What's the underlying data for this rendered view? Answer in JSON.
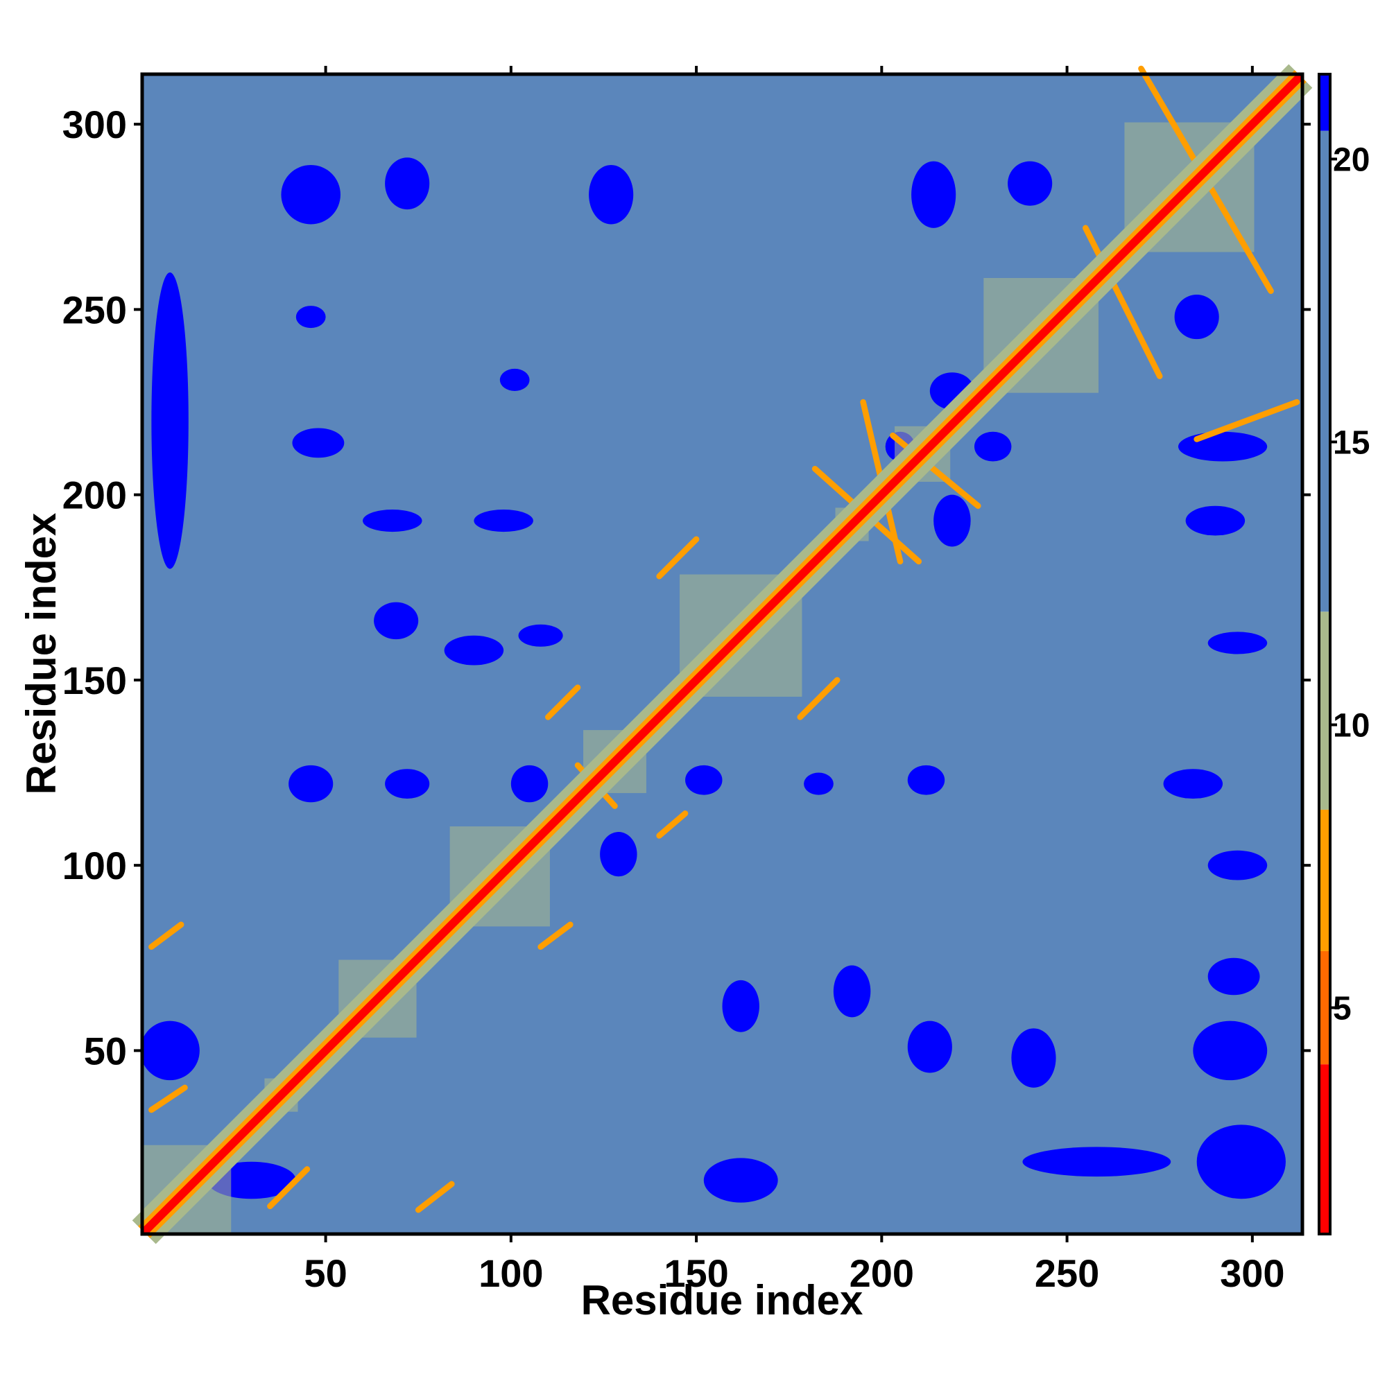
{
  "chart_data": {
    "type": "heatmap",
    "title": "",
    "xlabel": "Residue index",
    "ylabel": "Residue index",
    "n_residues": 313,
    "xlim": [
      1,
      313
    ],
    "ylim": [
      1,
      313
    ],
    "x_ticks": [
      50,
      100,
      150,
      200,
      250,
      300
    ],
    "y_ticks": [
      50,
      100,
      150,
      200,
      250,
      300
    ],
    "colorbar": {
      "range": [
        1,
        21.5
      ],
      "ticks": [
        5,
        10,
        15,
        20
      ],
      "colors": [
        {
          "from": 0,
          "to": 4,
          "color": "#ff0000"
        },
        {
          "from": 4,
          "to": 6,
          "color": "#ff6a00"
        },
        {
          "from": 6,
          "to": 8.5,
          "color": "#ff9e00"
        },
        {
          "from": 8.5,
          "to": 12,
          "color": "#a9b98c"
        },
        {
          "from": 12,
          "to": 20.5,
          "color": "#5b86bb"
        },
        {
          "from": 20.5,
          "to": 99,
          "color": "#0000ff"
        }
      ]
    },
    "diagonal_value": 0,
    "background_value": 17,
    "features": {
      "helix_blocks": [
        [
          1,
          24
        ],
        [
          34,
          42
        ],
        [
          54,
          74
        ],
        [
          84,
          110
        ],
        [
          120,
          136
        ],
        [
          146,
          178
        ],
        [
          188,
          196
        ],
        [
          204,
          218
        ],
        [
          228,
          258
        ],
        [
          266,
          300
        ]
      ],
      "antidiagonal_contacts": [
        {
          "x1": 195,
          "y1": 225,
          "x2": 205,
          "y2": 182,
          "value": 6
        },
        {
          "x1": 203,
          "y1": 216,
          "x2": 226,
          "y2": 197,
          "value": 6
        },
        {
          "x1": 182,
          "y1": 207,
          "x2": 210,
          "y2": 182,
          "value": 6
        },
        {
          "x1": 118,
          "y1": 127,
          "x2": 128,
          "y2": 116,
          "value": 6
        },
        {
          "x1": 270,
          "y1": 315,
          "x2": 305,
          "y2": 255,
          "value": 7
        },
        {
          "x1": 255,
          "y1": 272,
          "x2": 275,
          "y2": 232,
          "value": 7
        }
      ],
      "parallel_contacts": [
        {
          "x1": 3,
          "y1": 78,
          "x2": 11,
          "y2": 84,
          "value": 6
        },
        {
          "x1": 3,
          "y1": 34,
          "x2": 12,
          "y2": 40,
          "value": 6
        },
        {
          "x1": 35,
          "y1": 8,
          "x2": 45,
          "y2": 18,
          "value": 6
        },
        {
          "x1": 75,
          "y1": 7,
          "x2": 84,
          "y2": 14,
          "value": 6
        },
        {
          "x1": 108,
          "y1": 78,
          "x2": 116,
          "y2": 84,
          "value": 6
        },
        {
          "x1": 110,
          "y1": 140,
          "x2": 118,
          "y2": 148,
          "value": 6
        },
        {
          "x1": 140,
          "y1": 108,
          "x2": 147,
          "y2": 114,
          "value": 6
        },
        {
          "x1": 140,
          "y1": 178,
          "x2": 150,
          "y2": 188,
          "value": 6
        },
        {
          "x1": 178,
          "y1": 140,
          "x2": 188,
          "y2": 150,
          "value": 6
        },
        {
          "x1": 285,
          "y1": 215,
          "x2": 312,
          "y2": 225,
          "value": 7
        }
      ],
      "far_blobs": [
        [
          46,
          281,
          8,
          8
        ],
        [
          72,
          284,
          6,
          7
        ],
        [
          127,
          281,
          6,
          8
        ],
        [
          214,
          281,
          6,
          9
        ],
        [
          240,
          284,
          6,
          6
        ],
        [
          285,
          248,
          6,
          6
        ],
        [
          46,
          248,
          4,
          3
        ],
        [
          48,
          214,
          7,
          4
        ],
        [
          68,
          193,
          8,
          3
        ],
        [
          98,
          193,
          8,
          3
        ],
        [
          101,
          231,
          4,
          3
        ],
        [
          69,
          166,
          6,
          5
        ],
        [
          46,
          122,
          6,
          5
        ],
        [
          72,
          122,
          6,
          4
        ],
        [
          105,
          122,
          5,
          5
        ],
        [
          152,
          123,
          5,
          4
        ],
        [
          212,
          123,
          5,
          4
        ],
        [
          284,
          122,
          8,
          4
        ],
        [
          129,
          103,
          5,
          6
        ],
        [
          162,
          62,
          5,
          7
        ],
        [
          192,
          66,
          5,
          7
        ],
        [
          213,
          51,
          6,
          7
        ],
        [
          294,
          50,
          10,
          8
        ],
        [
          295,
          70,
          7,
          5
        ],
        [
          183,
          122,
          4,
          3
        ],
        [
          219,
          228,
          6,
          5
        ],
        [
          241,
          48,
          6,
          8
        ],
        [
          258,
          20,
          20,
          4
        ],
        [
          297,
          20,
          12,
          10
        ],
        [
          162,
          15,
          10,
          6
        ],
        [
          90,
          158,
          8,
          4
        ],
        [
          108,
          162,
          6,
          3
        ],
        [
          219,
          193,
          5,
          7
        ],
        [
          205,
          213,
          4,
          4
        ],
        [
          230,
          213,
          5,
          4
        ],
        [
          292,
          213,
          12,
          4
        ],
        [
          290,
          193,
          8,
          4
        ],
        [
          296,
          160,
          8,
          3
        ],
        [
          296,
          100,
          8,
          4
        ],
        [
          8,
          220,
          5,
          40
        ],
        [
          8,
          50,
          8,
          8
        ],
        [
          30,
          15,
          12,
          5
        ]
      ]
    }
  }
}
